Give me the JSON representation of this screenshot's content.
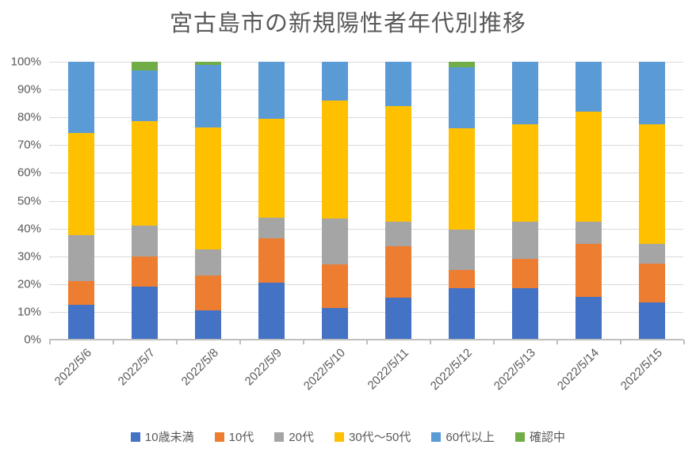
{
  "title": "宮古島市の新規陽性者年代別推移",
  "colors": {
    "text": "#595959",
    "gridline": "#d9d9d9",
    "axis_line": "#bfbfbf",
    "background": "#ffffff"
  },
  "chart_data": {
    "type": "bar",
    "variant": "100%-stacked-column",
    "title": "宮古島市の新規陽性者年代別推移",
    "categories": [
      "2022/5/6",
      "2022/5/7",
      "2022/5/8",
      "2022/5/9",
      "2022/5/10",
      "2022/5/11",
      "2022/5/12",
      "2022/5/13",
      "2022/5/14",
      "2022/5/15"
    ],
    "series": [
      {
        "name": "10歳未満",
        "color": "#4472C4",
        "values": [
          12.5,
          19,
          10.5,
          20.5,
          11.5,
          15,
          18.5,
          18.5,
          15.5,
          13.5
        ]
      },
      {
        "name": "10代",
        "color": "#ED7D31",
        "values": [
          8.5,
          11,
          12.5,
          16,
          15.5,
          18.5,
          6.5,
          10.5,
          19,
          14
        ]
      },
      {
        "name": "20代",
        "color": "#A5A5A5",
        "values": [
          16.5,
          11,
          9.5,
          7.5,
          16.5,
          9,
          14.5,
          13.5,
          8,
          7
        ]
      },
      {
        "name": "30代～50代",
        "color": "#FFC000",
        "values": [
          37,
          37.5,
          44,
          35.5,
          42.5,
          41.5,
          36.5,
          35,
          39.5,
          43
        ]
      },
      {
        "name": "60代以上",
        "color": "#5B9BD5",
        "values": [
          25.5,
          18.5,
          22.5,
          20.5,
          14,
          16,
          22,
          22.5,
          18,
          22.5
        ]
      },
      {
        "name": "確認中",
        "color": "#70AD47",
        "values": [
          0,
          3,
          1,
          0,
          0,
          0,
          2,
          0,
          0,
          0
        ]
      }
    ],
    "y_ticks": [
      "100%",
      "90%",
      "80%",
      "70%",
      "60%",
      "50%",
      "40%",
      "30%",
      "20%",
      "10%",
      "0%"
    ],
    "ylim": [
      0,
      100
    ],
    "xlabel": "",
    "ylabel": "",
    "grid": "horizontal",
    "legend_position": "bottom"
  }
}
